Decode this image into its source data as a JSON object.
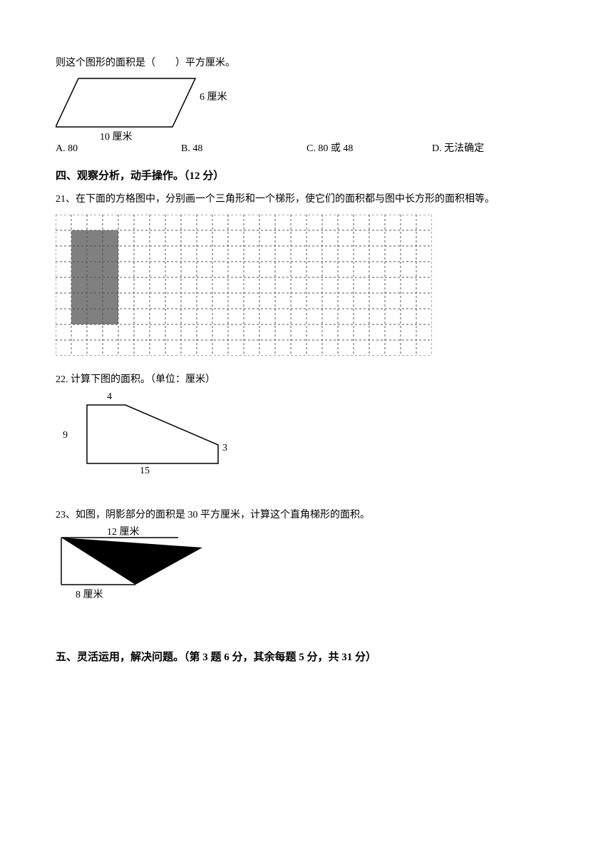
{
  "q_prev_stem": "则这个图形的面积是（　　）平方厘米。",
  "parallelogram": {
    "label_side": "6 厘米",
    "label_base": "10 厘米",
    "stroke": "#000000"
  },
  "options": {
    "a": "A. 80",
    "b": "B. 48",
    "c": "C. 80 或 48",
    "d": "D. 无法确定"
  },
  "section4_title": "四、观察分析，动手操作。（12 分）",
  "q21": "21、在下面的方格图中，分别画一个三角形和一个梯形，使它们的面积都与图中长方形的面积相等。",
  "grid": {
    "cols": 24,
    "rows": 9,
    "cell": 22,
    "rect_x": 1,
    "rect_y": 1,
    "rect_w": 3,
    "rect_h": 6,
    "fill": "#808080",
    "stroke": "#555555"
  },
  "q22": "22. 计算下图的面积。（单位：厘米）",
  "trapezoid": {
    "top_label": "4",
    "left_label": "9",
    "right_label": "3",
    "bottom_label": "15",
    "stroke": "#000000"
  },
  "q23": "23、如图，阴影部分的面积是 30 平方厘米，计算这个直角梯形的面积。",
  "shaded": {
    "top_label": "12 厘米",
    "bottom_label": "8 厘米",
    "black": "#000000",
    "bg": "#ffffff"
  },
  "section5_title": "五、灵活运用，解决问题。（第 3 题 6 分，其余每题 5 分，共 31 分）"
}
